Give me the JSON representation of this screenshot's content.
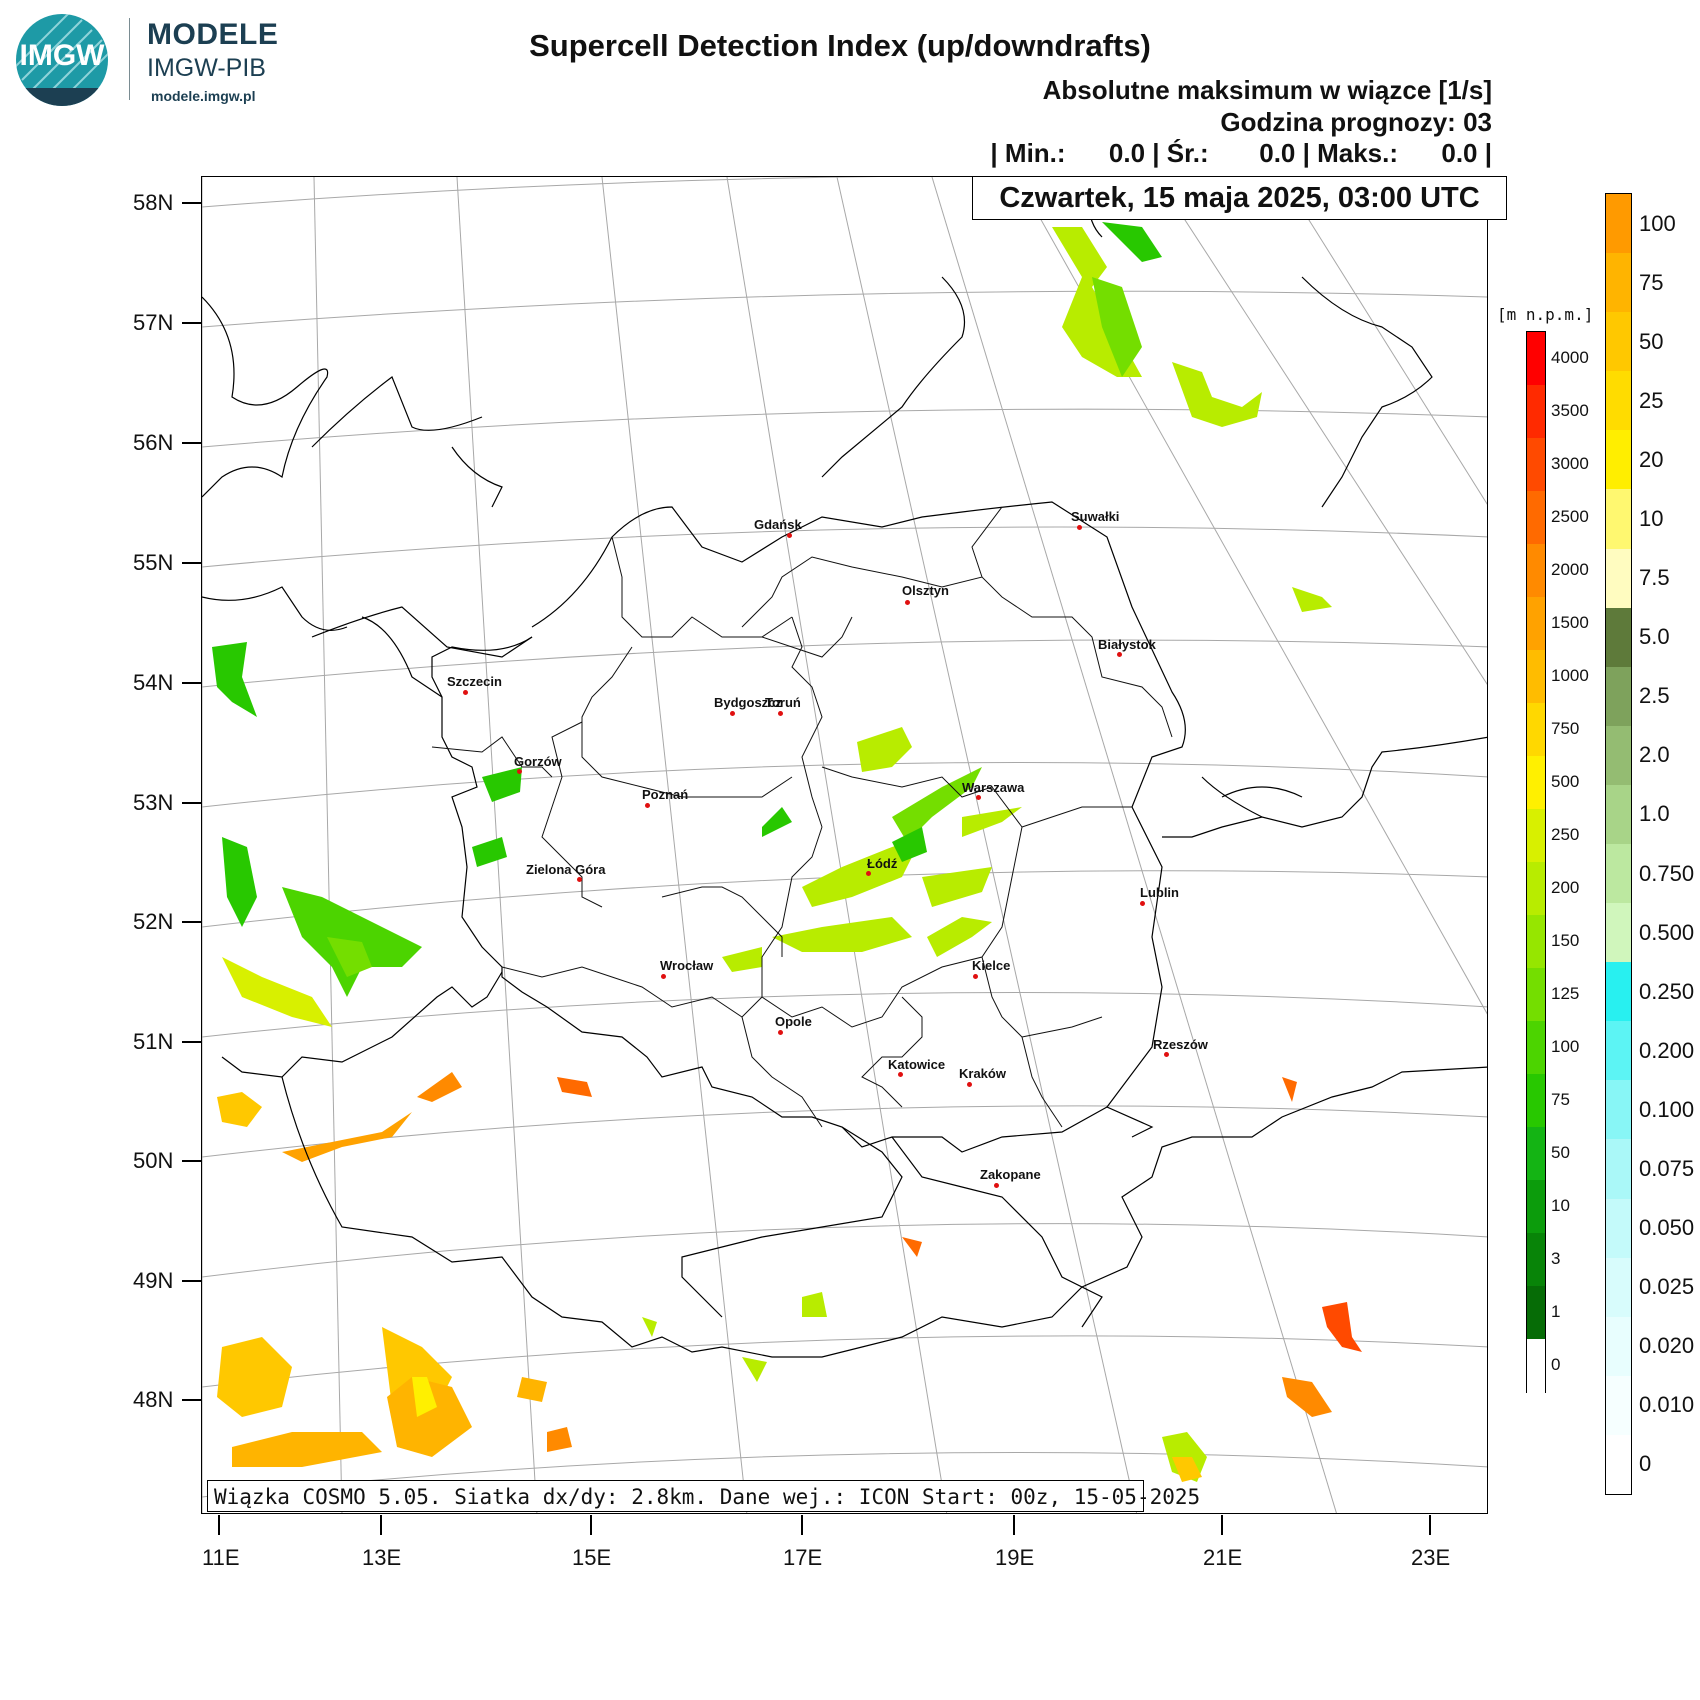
{
  "brand": {
    "logo_text": "IMGW",
    "title": "MODELE",
    "subtitle": "IMGW-PIB",
    "url": "modele.imgw.pl"
  },
  "header": {
    "title": "Supercell Detection Index (up/downdrafts)",
    "subtitle": "Absolutne maksimum w wiązce [1/s]",
    "forecast_hour": "Godzina prognozy: 03",
    "stats": "| Min.:      0.0 | Śr.:       0.0 | Maks.:      0.0 |"
  },
  "date_label": "Czwartek, 15 maja 2025, 03:00 UTC",
  "footer": "Wiązka COSMO 5.05. Siatka dx/dy: 2.8km. Dane wej.: ICON Start: 00z, 15-05-2025",
  "axes": {
    "latitude_labels": [
      "58N",
      "57N",
      "56N",
      "55N",
      "54N",
      "53N",
      "52N",
      "51N",
      "50N",
      "49N",
      "48N"
    ],
    "longitude_labels": [
      "11E",
      "13E",
      "15E",
      "17E",
      "19E",
      "21E",
      "23E"
    ]
  },
  "cities": [
    {
      "name": "Gdańsk"
    },
    {
      "name": "Suwałki"
    },
    {
      "name": "Olsztyn"
    },
    {
      "name": "Białystok"
    },
    {
      "name": "Szczecin"
    },
    {
      "name": "Bydgoszcz"
    },
    {
      "name": "Toruń"
    },
    {
      "name": "Gorzów"
    },
    {
      "name": "Poznań"
    },
    {
      "name": "Warszawa"
    },
    {
      "name": "Łódź"
    },
    {
      "name": "Zielona Góra"
    },
    {
      "name": "Lublin"
    },
    {
      "name": "Wrocław"
    },
    {
      "name": "Kielce"
    },
    {
      "name": "Opole"
    },
    {
      "name": "Rzeszów"
    },
    {
      "name": "Katowice"
    },
    {
      "name": "Kraków"
    },
    {
      "name": "Zakopane"
    }
  ],
  "elevation_legend": {
    "unit": "[m n.p.m.]",
    "labels": [
      "4000",
      "3500",
      "3000",
      "2500",
      "2000",
      "1500",
      "1000",
      "750",
      "500",
      "250",
      "200",
      "150",
      "125",
      "100",
      "75",
      "50",
      "10",
      "3",
      "1",
      "0"
    ],
    "colors": [
      "#ff0000",
      "#ff2a00",
      "#ff4a00",
      "#ff6a00",
      "#ff8a00",
      "#ffa200",
      "#ffbc00",
      "#ffd800",
      "#fff000",
      "#d8f000",
      "#b8ec00",
      "#96e600",
      "#74de00",
      "#4cd400",
      "#28c800",
      "#14b414",
      "#0c9c0c",
      "#088408",
      "#066c06",
      "#ffffff"
    ]
  },
  "sdi_legend": {
    "labels": [
      "100",
      "75",
      "50",
      "25",
      "20",
      "10",
      "7.5",
      "5.0",
      "2.5",
      "2.0",
      "1.0",
      "0.750",
      "0.500",
      "0.250",
      "0.200",
      "0.100",
      "0.075",
      "0.050",
      "0.025",
      "0.020",
      "0.010",
      "0"
    ],
    "colors": [
      "#ff9a00",
      "#ffb400",
      "#ffc800",
      "#ffdc00",
      "#ffee00",
      "#fff870",
      "#fffcc0",
      "#5e7a3a",
      "#7ea25c",
      "#94bc72",
      "#a8d488",
      "#bce8a0",
      "#d0f6bc",
      "#28f0f0",
      "#5cf4f4",
      "#88f6f6",
      "#aaf8f8",
      "#c4fafa",
      "#d8fcfc",
      "#e8fefe",
      "#f6ffff",
      "#ffffff"
    ]
  }
}
